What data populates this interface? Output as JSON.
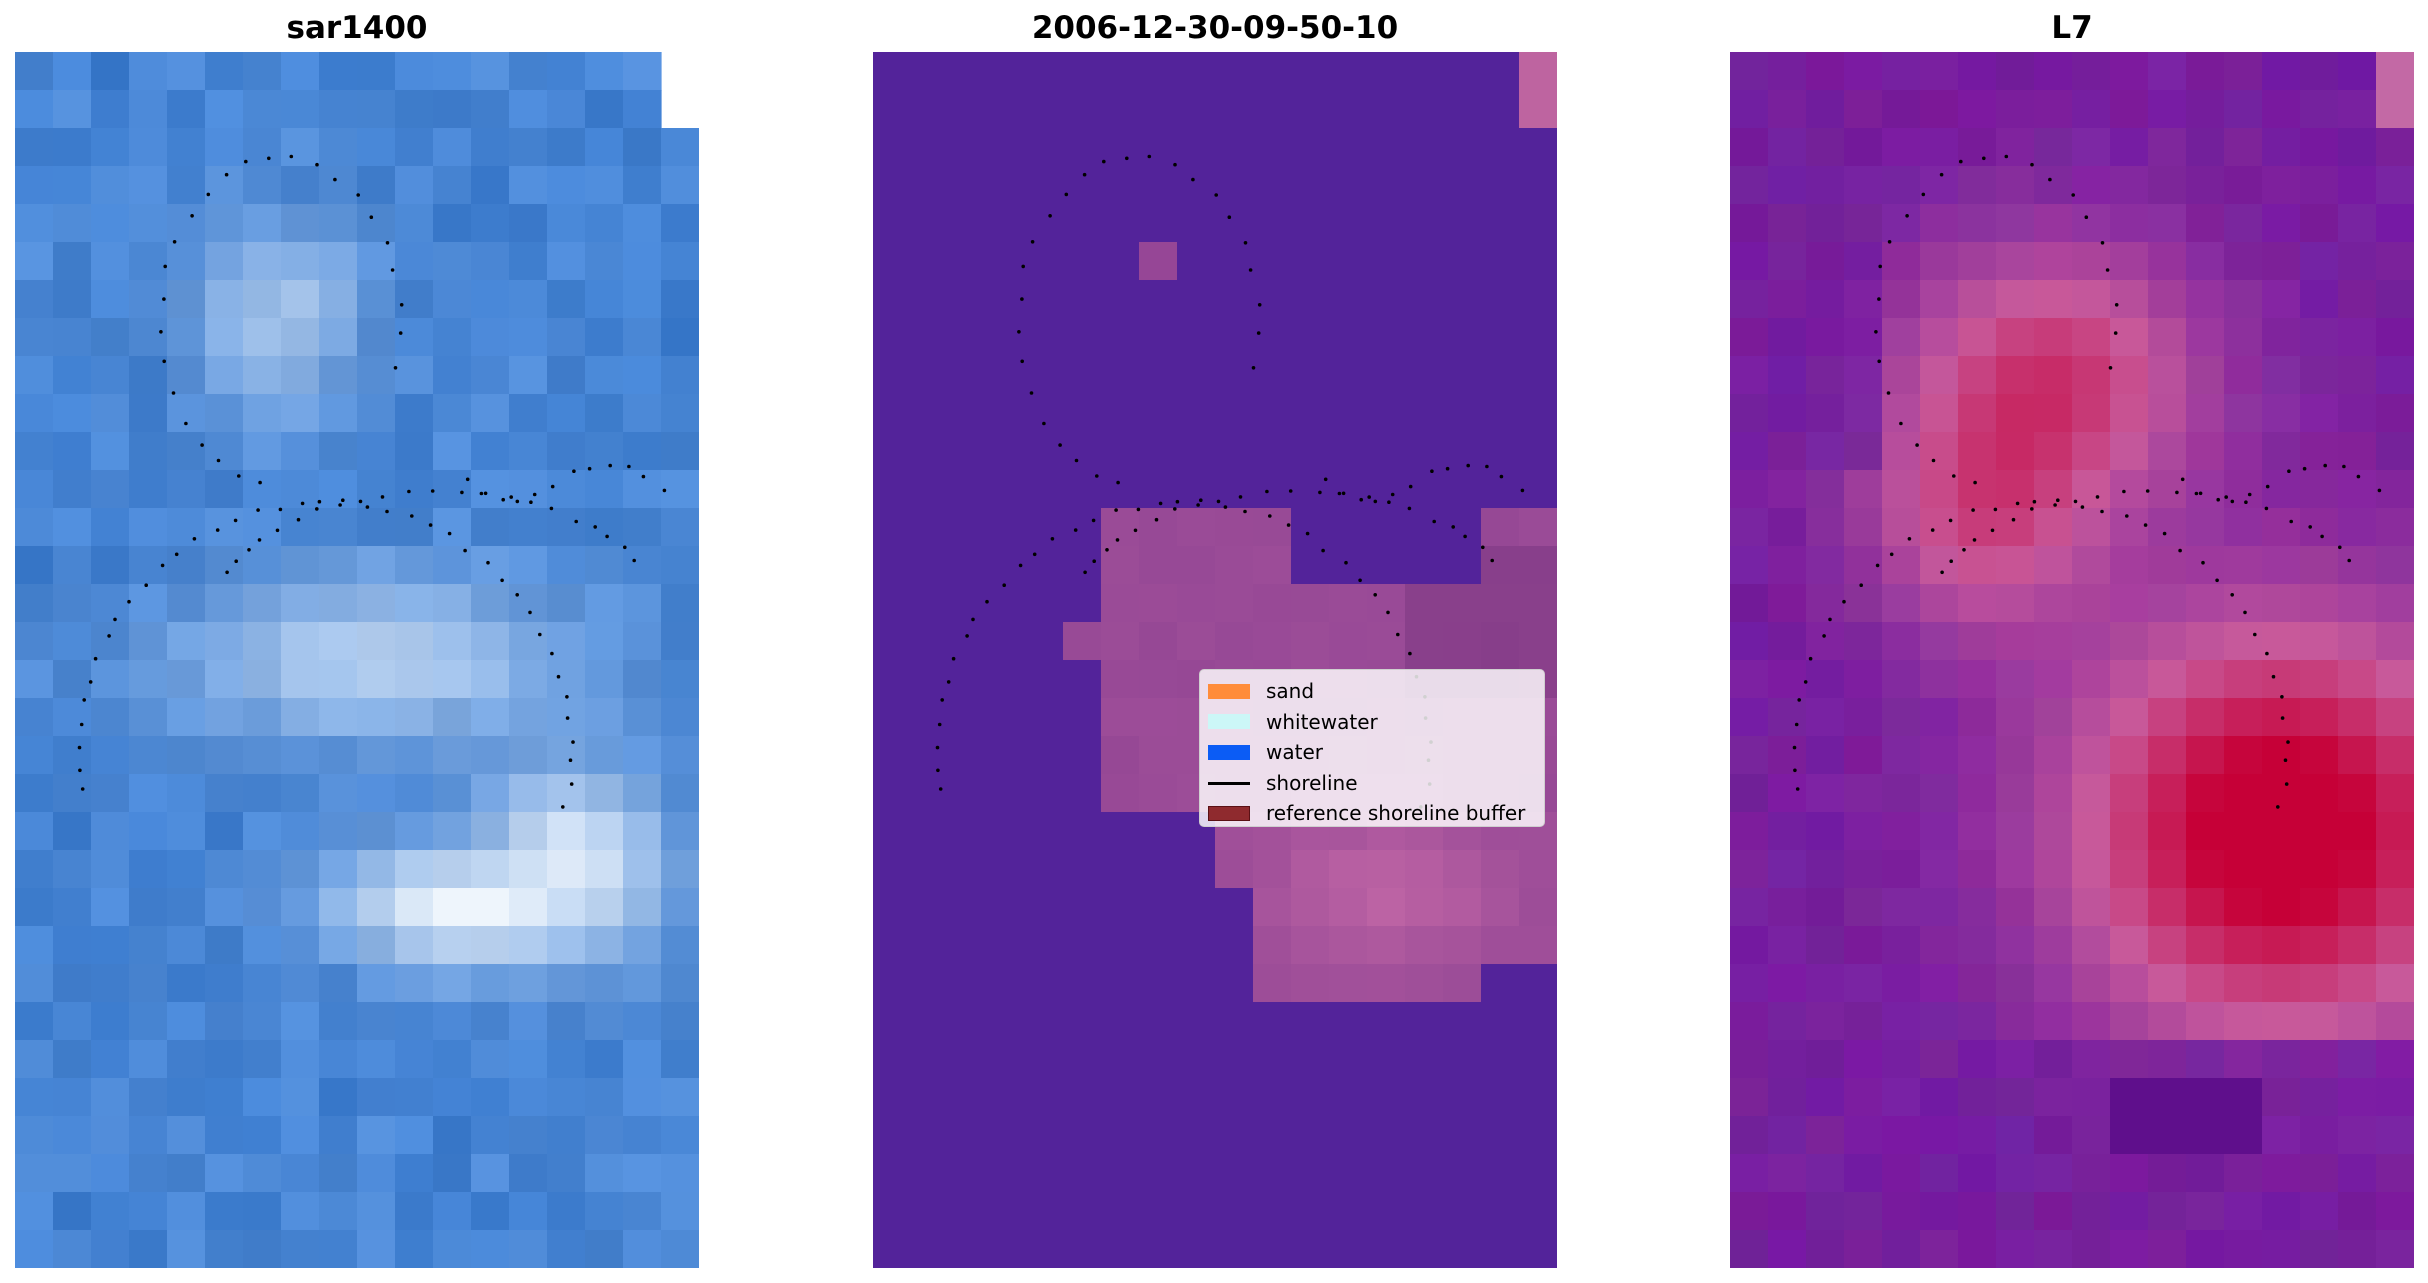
{
  "panels": [
    {
      "title": "sar1400"
    },
    {
      "title": "2006-12-30-09-50-10"
    },
    {
      "title": "L7"
    }
  ],
  "legend": {
    "items": [
      {
        "label": "sand",
        "color": "#ff8c3a",
        "kind": "patch"
      },
      {
        "label": "whitewater",
        "color": "#ccf7f7",
        "kind": "patch"
      },
      {
        "label": "water",
        "color": "#0b5cf5",
        "kind": "patch"
      },
      {
        "label": "shoreline",
        "color": "#000000",
        "kind": "line"
      },
      {
        "label": "reference shoreline buffer",
        "color": "#8f2a2e",
        "kind": "patch"
      }
    ]
  },
  "colors": {
    "rgb_base": "#3f7fd3",
    "classified_background": "#53239a",
    "classified_buffer": "#8f4a93",
    "index_background": "#7a1f9d",
    "index_high": "#c4003a"
  }
}
